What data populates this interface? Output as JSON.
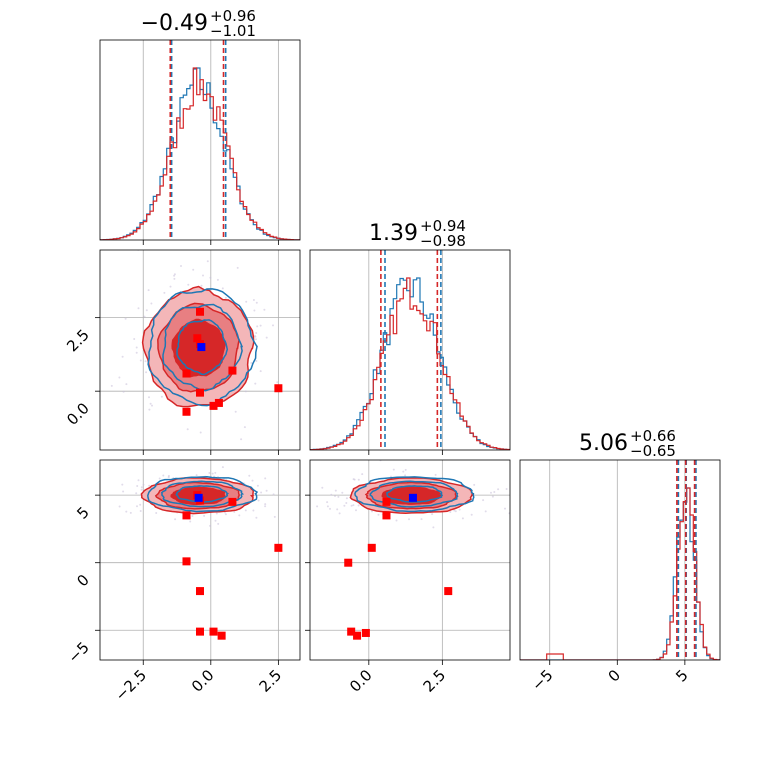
{
  "chart_data": {
    "type": "corner",
    "parameters": 3,
    "colors": {
      "red": "#d62728",
      "blue": "#1f77b4",
      "grid": "#b0b0b0",
      "marker_red": "#ff0000",
      "marker_blue": "#0000ff"
    },
    "titles": [
      {
        "value": "−0.49",
        "plus": "+0.96",
        "minus": "−1.01"
      },
      {
        "value": "1.39",
        "plus": "+0.94",
        "minus": "−0.98"
      },
      {
        "value": "5.06",
        "plus": "+0.66",
        "minus": "−0.65"
      }
    ],
    "ranges": [
      [
        -4.1,
        3.3
      ],
      [
        -2.0,
        4.8
      ],
      [
        -7.2,
        7.6
      ]
    ],
    "ticks": [
      {
        "values": [
          -2.5,
          0.0,
          2.5
        ],
        "labels": [
          "−2.5",
          "0.0",
          "2.5"
        ]
      },
      {
        "values": [
          0.0,
          2.5
        ],
        "labels": [
          "0.0",
          "2.5"
        ]
      },
      {
        "values": [
          -5,
          0,
          5
        ],
        "labels": [
          "−5",
          "0",
          "5"
        ]
      }
    ],
    "ticks_row3": {
      "values": [
        -5,
        0,
        5
      ],
      "labels": [
        "−5",
        "0",
        "5"
      ]
    },
    "quantile_lines": {
      "red": [
        [
          -1.5,
          -0.49,
          0.47
        ],
        [
          0.41,
          1.39,
          2.33
        ],
        [
          4.41,
          5.06,
          5.72
        ]
      ],
      "blue": [
        [
          -1.45,
          -0.45,
          0.55
        ],
        [
          0.55,
          1.5,
          2.45
        ],
        [
          4.52,
          5.1,
          5.82
        ]
      ]
    },
    "hist_1d": [
      {
        "mu": -0.45,
        "sigma": 0.98
      },
      {
        "mu": 1.45,
        "sigma": 0.96
      },
      {
        "mu": 5.08,
        "sigma": 0.62
      }
    ],
    "hist_1d_tail_p3": {
      "red": [
        -5.2,
        -4.0
      ]
    },
    "red_markers": {
      "p1p2": [
        [
          -0.4,
          2.7
        ],
        [
          -0.4,
          1.6
        ],
        [
          -0.5,
          1.8
        ],
        [
          -0.9,
          0.6
        ],
        [
          0.8,
          0.7
        ],
        [
          -0.4,
          -0.05
        ],
        [
          -0.9,
          -0.7
        ],
        [
          0.1,
          -0.5
        ],
        [
          0.3,
          -0.4
        ],
        [
          2.5,
          0.1
        ]
      ],
      "p1p3": [
        [
          -0.4,
          4.6
        ],
        [
          -0.5,
          5.0
        ],
        [
          0.8,
          4.5
        ],
        [
          -0.9,
          3.5
        ],
        [
          -0.9,
          0.1
        ],
        [
          2.5,
          1.1
        ],
        [
          -0.4,
          -2.1
        ],
        [
          -0.4,
          -5.1
        ],
        [
          0.1,
          -5.1
        ],
        [
          0.4,
          -5.4
        ]
      ],
      "p2p3": [
        [
          0.6,
          4.5
        ],
        [
          0.6,
          3.5
        ],
        [
          0.1,
          1.1
        ],
        [
          -0.7,
          0.0
        ],
        [
          2.7,
          -2.1
        ],
        [
          -0.6,
          -5.1
        ],
        [
          -0.4,
          -5.4
        ],
        [
          -0.1,
          -5.2
        ]
      ]
    },
    "blue_markers": {
      "p1p2": [
        [
          -0.35,
          1.5
        ]
      ],
      "p1p3": [
        [
          -0.45,
          4.8
        ]
      ],
      "p2p3": [
        [
          1.5,
          4.8
        ]
      ]
    }
  }
}
